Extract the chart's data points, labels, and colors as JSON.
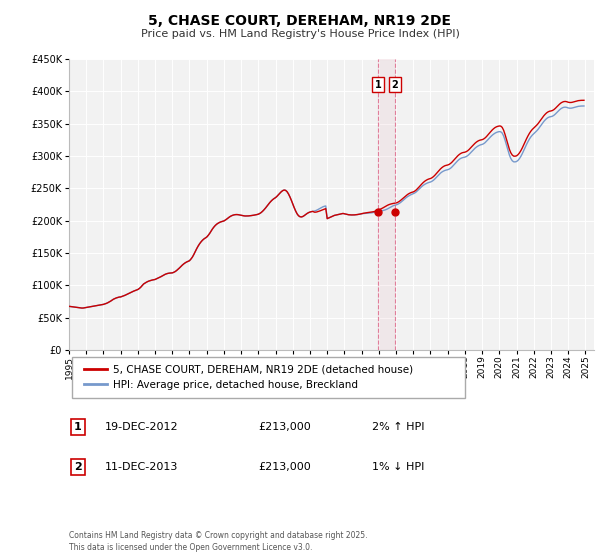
{
  "title": "5, CHASE COURT, DEREHAM, NR19 2DE",
  "subtitle": "Price paid vs. HM Land Registry's House Price Index (HPI)",
  "background_color": "#ffffff",
  "plot_bg_color": "#f2f2f2",
  "grid_color": "#ffffff",
  "hpi_color": "#7799cc",
  "price_color": "#cc0000",
  "ylim": [
    0,
    450000
  ],
  "yticks": [
    0,
    50000,
    100000,
    150000,
    200000,
    250000,
    300000,
    350000,
    400000,
    450000
  ],
  "ytick_labels": [
    "£0",
    "£50K",
    "£100K",
    "£150K",
    "£200K",
    "£250K",
    "£300K",
    "£350K",
    "£400K",
    "£450K"
  ],
  "xmin": 1995.0,
  "xmax": 2025.5,
  "xticks": [
    1995,
    1996,
    1997,
    1998,
    1999,
    2000,
    2001,
    2002,
    2003,
    2004,
    2005,
    2006,
    2007,
    2008,
    2009,
    2010,
    2011,
    2012,
    2013,
    2014,
    2015,
    2016,
    2017,
    2018,
    2019,
    2020,
    2021,
    2022,
    2023,
    2024,
    2025
  ],
  "transaction1_x": 2012.96,
  "transaction1_y": 213000,
  "transaction2_x": 2013.94,
  "transaction2_y": 213000,
  "legend_label_price": "5, CHASE COURT, DEREHAM, NR19 2DE (detached house)",
  "legend_label_hpi": "HPI: Average price, detached house, Breckland",
  "table_rows": [
    {
      "num": "1",
      "date": "19-DEC-2012",
      "price": "£213,000",
      "hpi": "2% ↑ HPI"
    },
    {
      "num": "2",
      "date": "11-DEC-2013",
      "price": "£213,000",
      "hpi": "1% ↓ HPI"
    }
  ],
  "footer": "Contains HM Land Registry data © Crown copyright and database right 2025.\nThis data is licensed under the Open Government Licence v3.0.",
  "hpi_data_x": [
    1995.0,
    1995.083,
    1995.167,
    1995.25,
    1995.333,
    1995.417,
    1995.5,
    1995.583,
    1995.667,
    1995.75,
    1995.833,
    1995.917,
    1996.0,
    1996.083,
    1996.167,
    1996.25,
    1996.333,
    1996.417,
    1996.5,
    1996.583,
    1996.667,
    1996.75,
    1996.833,
    1996.917,
    1997.0,
    1997.083,
    1997.167,
    1997.25,
    1997.333,
    1997.417,
    1997.5,
    1997.583,
    1997.667,
    1997.75,
    1997.833,
    1997.917,
    1998.0,
    1998.083,
    1998.167,
    1998.25,
    1998.333,
    1998.417,
    1998.5,
    1998.583,
    1998.667,
    1998.75,
    1998.833,
    1998.917,
    1999.0,
    1999.083,
    1999.167,
    1999.25,
    1999.333,
    1999.417,
    1999.5,
    1999.583,
    1999.667,
    1999.75,
    1999.833,
    1999.917,
    2000.0,
    2000.083,
    2000.167,
    2000.25,
    2000.333,
    2000.417,
    2000.5,
    2000.583,
    2000.667,
    2000.75,
    2000.833,
    2000.917,
    2001.0,
    2001.083,
    2001.167,
    2001.25,
    2001.333,
    2001.417,
    2001.5,
    2001.583,
    2001.667,
    2001.75,
    2001.833,
    2001.917,
    2002.0,
    2002.083,
    2002.167,
    2002.25,
    2002.333,
    2002.417,
    2002.5,
    2002.583,
    2002.667,
    2002.75,
    2002.833,
    2002.917,
    2003.0,
    2003.083,
    2003.167,
    2003.25,
    2003.333,
    2003.417,
    2003.5,
    2003.583,
    2003.667,
    2003.75,
    2003.833,
    2003.917,
    2004.0,
    2004.083,
    2004.167,
    2004.25,
    2004.333,
    2004.417,
    2004.5,
    2004.583,
    2004.667,
    2004.75,
    2004.833,
    2004.917,
    2005.0,
    2005.083,
    2005.167,
    2005.25,
    2005.333,
    2005.417,
    2005.5,
    2005.583,
    2005.667,
    2005.75,
    2005.833,
    2005.917,
    2006.0,
    2006.083,
    2006.167,
    2006.25,
    2006.333,
    2006.417,
    2006.5,
    2006.583,
    2006.667,
    2006.75,
    2006.833,
    2006.917,
    2007.0,
    2007.083,
    2007.167,
    2007.25,
    2007.333,
    2007.417,
    2007.5,
    2007.583,
    2007.667,
    2007.75,
    2007.833,
    2007.917,
    2008.0,
    2008.083,
    2008.167,
    2008.25,
    2008.333,
    2008.417,
    2008.5,
    2008.583,
    2008.667,
    2008.75,
    2008.833,
    2008.917,
    2009.0,
    2009.083,
    2009.167,
    2009.25,
    2009.333,
    2009.417,
    2009.5,
    2009.583,
    2009.667,
    2009.75,
    2009.833,
    2009.917,
    2010.0,
    2010.083,
    2010.167,
    2010.25,
    2010.333,
    2010.417,
    2010.5,
    2010.583,
    2010.667,
    2010.75,
    2010.833,
    2010.917,
    2011.0,
    2011.083,
    2011.167,
    2011.25,
    2011.333,
    2011.417,
    2011.5,
    2011.583,
    2011.667,
    2011.75,
    2011.833,
    2011.917,
    2012.0,
    2012.083,
    2012.167,
    2012.25,
    2012.333,
    2012.417,
    2012.5,
    2012.583,
    2012.667,
    2012.75,
    2012.833,
    2012.917,
    2013.0,
    2013.083,
    2013.167,
    2013.25,
    2013.333,
    2013.417,
    2013.5,
    2013.583,
    2013.667,
    2013.75,
    2013.833,
    2013.917,
    2014.0,
    2014.083,
    2014.167,
    2014.25,
    2014.333,
    2014.417,
    2014.5,
    2014.583,
    2014.667,
    2014.75,
    2014.833,
    2014.917,
    2015.0,
    2015.083,
    2015.167,
    2015.25,
    2015.333,
    2015.417,
    2015.5,
    2015.583,
    2015.667,
    2015.75,
    2015.833,
    2015.917,
    2016.0,
    2016.083,
    2016.167,
    2016.25,
    2016.333,
    2016.417,
    2016.5,
    2016.583,
    2016.667,
    2016.75,
    2016.833,
    2016.917,
    2017.0,
    2017.083,
    2017.167,
    2017.25,
    2017.333,
    2017.417,
    2017.5,
    2017.583,
    2017.667,
    2017.75,
    2017.833,
    2017.917,
    2018.0,
    2018.083,
    2018.167,
    2018.25,
    2018.333,
    2018.417,
    2018.5,
    2018.583,
    2018.667,
    2018.75,
    2018.833,
    2018.917,
    2019.0,
    2019.083,
    2019.167,
    2019.25,
    2019.333,
    2019.417,
    2019.5,
    2019.583,
    2019.667,
    2019.75,
    2019.833,
    2019.917,
    2020.0,
    2020.083,
    2020.167,
    2020.25,
    2020.333,
    2020.417,
    2020.5,
    2020.583,
    2020.667,
    2020.75,
    2020.833,
    2020.917,
    2021.0,
    2021.083,
    2021.167,
    2021.25,
    2021.333,
    2021.417,
    2021.5,
    2021.583,
    2021.667,
    2021.75,
    2021.833,
    2021.917,
    2022.0,
    2022.083,
    2022.167,
    2022.25,
    2022.333,
    2022.417,
    2022.5,
    2022.583,
    2022.667,
    2022.75,
    2022.833,
    2022.917,
    2023.0,
    2023.083,
    2023.167,
    2023.25,
    2023.333,
    2023.417,
    2023.5,
    2023.583,
    2023.667,
    2023.75,
    2023.833,
    2023.917,
    2024.0,
    2024.083,
    2024.167,
    2024.25,
    2024.333,
    2024.417,
    2024.5,
    2024.583,
    2024.667,
    2024.75,
    2024.833,
    2024.917
  ],
  "hpi_data_y": [
    67500,
    67200,
    66900,
    66600,
    66300,
    66000,
    65700,
    65400,
    65100,
    64800,
    64900,
    65300,
    65700,
    66100,
    66500,
    66900,
    67300,
    67700,
    68100,
    68500,
    68900,
    69300,
    69700,
    70100,
    70500,
    71200,
    72000,
    73000,
    74200,
    75500,
    77000,
    78500,
    79500,
    80500,
    81200,
    81800,
    82000,
    82800,
    83600,
    84500,
    85500,
    86600,
    87700,
    88800,
    89900,
    90900,
    91800,
    92600,
    93500,
    95000,
    97000,
    99500,
    102000,
    103500,
    104800,
    105900,
    106800,
    107500,
    108100,
    108600,
    109000,
    110000,
    111000,
    112000,
    113200,
    114500,
    115800,
    116900,
    117800,
    118400,
    118800,
    119000,
    119200,
    120000,
    121200,
    122800,
    124700,
    126800,
    129000,
    131200,
    133100,
    134700,
    136000,
    137100,
    138000,
    140500,
    143500,
    147500,
    152000,
    156500,
    160500,
    164000,
    167000,
    169500,
    171500,
    173000,
    174500,
    177000,
    180000,
    183500,
    187000,
    190000,
    192500,
    194500,
    196000,
    197200,
    198100,
    198800,
    199500,
    200800,
    202400,
    204200,
    205800,
    207100,
    208100,
    208800,
    209200,
    209300,
    209100,
    208700,
    208200,
    207700,
    207300,
    207100,
    207100,
    207200,
    207400,
    207700,
    208000,
    208400,
    208800,
    209300,
    209900,
    211000,
    212500,
    214500,
    216800,
    219400,
    222300,
    225200,
    227900,
    230300,
    232400,
    234100,
    235500,
    237500,
    239800,
    242300,
    244600,
    246300,
    247200,
    246700,
    244700,
    241200,
    236700,
    231400,
    225700,
    220000,
    214800,
    210500,
    207500,
    206000,
    205600,
    206300,
    207700,
    209400,
    211000,
    212300,
    213200,
    213800,
    214200,
    214700,
    215400,
    216400,
    217600,
    218900,
    220200,
    221300,
    222100,
    222600,
    203000,
    204000,
    205000,
    206000,
    207000,
    208000,
    208500,
    209000,
    209500,
    210000,
    210500,
    211000,
    210500,
    210000,
    209500,
    209000,
    208800,
    208700,
    208700,
    208800,
    209000,
    209300,
    209700,
    210100,
    210500,
    210800,
    211000,
    211200,
    211300,
    211500,
    211700,
    212000,
    212400,
    212900,
    213400,
    213900,
    214300,
    214700,
    215100,
    215600,
    216200,
    217000,
    218000,
    219200,
    220500,
    221800,
    222900,
    223700,
    224200,
    225000,
    226200,
    227700,
    229500,
    231400,
    233400,
    235300,
    237000,
    238400,
    239600,
    240600,
    241400,
    242600,
    244200,
    246200,
    248400,
    250600,
    252700,
    254500,
    256000,
    257200,
    258200,
    259000,
    259600,
    260700,
    262200,
    264200,
    266500,
    268900,
    271300,
    273400,
    275100,
    276400,
    277400,
    278100,
    278600,
    279500,
    280900,
    282900,
    285200,
    287700,
    290200,
    292500,
    294500,
    296000,
    297000,
    297600,
    298000,
    299000,
    300500,
    302500,
    304800,
    307200,
    309600,
    311700,
    313500,
    315000,
    316200,
    317100,
    317700,
    318700,
    320300,
    322500,
    324900,
    327400,
    329700,
    331800,
    333600,
    335100,
    336200,
    337000,
    337500,
    337200,
    335200,
    330800,
    324200,
    316500,
    308500,
    301500,
    296000,
    292500,
    290800,
    290700,
    291300,
    293000,
    295700,
    299200,
    303400,
    308100,
    313000,
    317800,
    322200,
    326100,
    329400,
    332100,
    334200,
    336300,
    338500,
    341000,
    344000,
    347100,
    350200,
    353100,
    355600,
    357700,
    359200,
    360200,
    360600,
    361300,
    362600,
    364500,
    366700,
    369000,
    371200,
    373000,
    374300,
    375100,
    375300,
    374900,
    374100,
    373700,
    373700,
    374100,
    374700,
    375400,
    376000,
    376500,
    376800,
    377000,
    377100,
    377100
  ],
  "price_data_y": [
    67500,
    67200,
    66900,
    66600,
    66300,
    66000,
    65700,
    65400,
    65100,
    64800,
    64900,
    65300,
    65700,
    66100,
    66500,
    66900,
    67300,
    67700,
    68100,
    68500,
    68900,
    69300,
    69700,
    70100,
    70500,
    71200,
    72000,
    73000,
    74200,
    75500,
    77000,
    78500,
    79500,
    80500,
    81200,
    81800,
    82000,
    82800,
    83600,
    84500,
    85500,
    86600,
    87700,
    88800,
    89900,
    90900,
    91800,
    92600,
    93500,
    95000,
    97000,
    99500,
    102000,
    103500,
    104800,
    105900,
    106800,
    107500,
    108100,
    108600,
    109000,
    110000,
    111000,
    112000,
    113200,
    114500,
    115800,
    116900,
    117800,
    118400,
    118800,
    119000,
    119200,
    120000,
    121200,
    122800,
    124700,
    126800,
    129000,
    131200,
    133100,
    134700,
    136000,
    137100,
    138000,
    140500,
    143500,
    147500,
    152000,
    156500,
    160500,
    164000,
    167000,
    169500,
    171500,
    173000,
    174500,
    177000,
    180000,
    183500,
    187000,
    190000,
    192500,
    194500,
    196000,
    197200,
    198100,
    198800,
    199500,
    200800,
    202400,
    204200,
    205800,
    207100,
    208100,
    208800,
    209200,
    209300,
    209100,
    208700,
    208200,
    207700,
    207300,
    207100,
    207100,
    207200,
    207400,
    207700,
    208000,
    208400,
    208800,
    209300,
    209900,
    211000,
    212500,
    214500,
    216800,
    219400,
    222300,
    225200,
    227900,
    230300,
    232400,
    234100,
    235500,
    237500,
    239800,
    242300,
    244600,
    246300,
    247200,
    246700,
    244700,
    241200,
    236700,
    231400,
    225700,
    220000,
    214800,
    210500,
    207500,
    206000,
    205600,
    206300,
    207700,
    209400,
    211000,
    212300,
    213200,
    213800,
    214200,
    213000,
    213000,
    213500,
    214200,
    215000,
    215900,
    216900,
    217800,
    218500,
    203000,
    204000,
    205000,
    206000,
    207000,
    208000,
    208500,
    209000,
    209500,
    210000,
    210500,
    211000,
    210500,
    210000,
    209500,
    209000,
    208800,
    208700,
    208700,
    208800,
    209000,
    209300,
    209700,
    210100,
    210700,
    211200,
    211600,
    212000,
    212300,
    212600,
    212900,
    213200,
    213600,
    214100,
    214800,
    215600,
    216500,
    217500,
    218600,
    219800,
    221100,
    222400,
    223600,
    224600,
    225400,
    226000,
    226500,
    226900,
    227200,
    228000,
    229300,
    230900,
    232800,
    234800,
    236800,
    238700,
    240300,
    241700,
    242800,
    243700,
    244300,
    245500,
    247200,
    249400,
    251800,
    254300,
    256700,
    258900,
    260800,
    262300,
    263500,
    264400,
    265000,
    266100,
    267800,
    269900,
    272400,
    275000,
    277500,
    279900,
    281900,
    283500,
    284700,
    285400,
    285900,
    286800,
    288300,
    290300,
    292700,
    295200,
    297700,
    300000,
    302000,
    303600,
    304700,
    305300,
    305700,
    306600,
    308000,
    310000,
    312300,
    314800,
    317200,
    319400,
    321300,
    322800,
    323900,
    324600,
    325000,
    326000,
    327600,
    329700,
    332200,
    334900,
    337500,
    339900,
    342000,
    343700,
    344900,
    345700,
    346200,
    346000,
    344000,
    339600,
    333000,
    325300,
    317300,
    310300,
    304800,
    301300,
    299600,
    299500,
    300100,
    301800,
    304500,
    308000,
    312200,
    316900,
    321800,
    326600,
    331000,
    334900,
    338200,
    340900,
    343000,
    345000,
    347300,
    349800,
    352800,
    355900,
    359000,
    361900,
    364400,
    366500,
    368000,
    369000,
    369400,
    370100,
    371400,
    373300,
    375500,
    377800,
    380000,
    381800,
    383100,
    383900,
    384100,
    383700,
    382900,
    382500,
    382500,
    382900,
    383500,
    384200,
    384800,
    385300,
    385600,
    385800,
    385900,
    385900
  ]
}
